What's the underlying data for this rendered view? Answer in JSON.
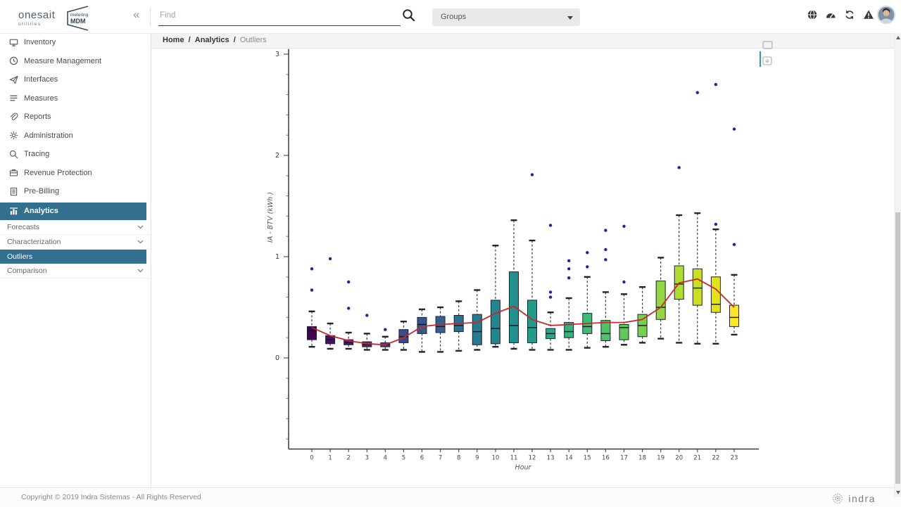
{
  "app": {
    "brand": "onesait",
    "brand_sub": "utilities",
    "product_top": "metering",
    "product": "MDM"
  },
  "topbar": {
    "collapse_icon": "«",
    "search_placeholder": "Find",
    "search_value": "",
    "groups_label": "Groups",
    "icons": [
      "globe-icon",
      "dashboard-gauge-icon",
      "sync-icon",
      "alerts-icon",
      "user-avatar"
    ]
  },
  "sidebar": {
    "items": [
      {
        "label": "Inventory",
        "icon": "inventory-monitor-icon"
      },
      {
        "label": "Measure Management",
        "icon": "clock-icon"
      },
      {
        "label": "Interfaces",
        "icon": "paper-plane-icon"
      },
      {
        "label": "Measures",
        "icon": "list-icon"
      },
      {
        "label": "Reports",
        "icon": "paperclip-icon"
      },
      {
        "label": "Administration",
        "icon": "gear-icon"
      },
      {
        "label": "Tracing",
        "icon": "search-icon"
      },
      {
        "label": "Revenue Protection",
        "icon": "briefcase-icon"
      },
      {
        "label": "Pre-Billing",
        "icon": "invoice-icon"
      }
    ],
    "analytics": {
      "label": "Analytics",
      "icon": "bar-chart-icon",
      "active": true
    },
    "analytics_children": [
      {
        "label": "Forecasts",
        "expandable": true,
        "active": false
      },
      {
        "label": "Characterization",
        "expandable": true,
        "active": false
      },
      {
        "label": "Outliers",
        "expandable": false,
        "active": true
      },
      {
        "label": "Comparison",
        "expandable": true,
        "active": false
      }
    ]
  },
  "breadcrumb": {
    "home": "Home",
    "section": "Analytics",
    "current": "Outliers",
    "separator": "/"
  },
  "chart_data": {
    "type": "box",
    "title": "",
    "xlabel": "Hour",
    "ylabel": "IA - BTV (kWh )",
    "x_ticks": [
      0,
      1,
      2,
      3,
      4,
      5,
      6,
      7,
      8,
      9,
      10,
      11,
      12,
      13,
      14,
      15,
      16,
      17,
      18,
      19,
      20,
      21,
      22,
      23
    ],
    "y_ticks": [
      0,
      1,
      2,
      3
    ],
    "ylim": [
      -0.9,
      3.05
    ],
    "y_minor_step": 0.2,
    "grid": false,
    "legend": "none",
    "outlier_color": "#2121a6",
    "mean_line": {
      "color": "#c62828",
      "values": [
        0.3,
        0.22,
        0.17,
        0.14,
        0.13,
        0.2,
        0.31,
        0.33,
        0.34,
        0.35,
        0.44,
        0.51,
        0.38,
        0.32,
        0.33,
        0.34,
        0.35,
        0.35,
        0.38,
        0.5,
        0.74,
        0.78,
        0.68,
        0.5
      ]
    },
    "boxes": [
      {
        "hour": 0,
        "low": 0.11,
        "q1": 0.18,
        "median": 0.27,
        "q3": 0.31,
        "high": 0.46,
        "outliers": [
          0.67,
          0.88
        ],
        "color": "#440154"
      },
      {
        "hour": 1,
        "low": 0.09,
        "q1": 0.14,
        "median": 0.18,
        "q3": 0.22,
        "high": 0.34,
        "outliers": [
          0.98
        ],
        "color": "#46115f"
      },
      {
        "hour": 2,
        "low": 0.09,
        "q1": 0.13,
        "median": 0.15,
        "q3": 0.18,
        "high": 0.25,
        "outliers": [
          0.49,
          0.75
        ],
        "color": "#482070"
      },
      {
        "hour": 3,
        "low": 0.08,
        "q1": 0.11,
        "median": 0.13,
        "q3": 0.16,
        "high": 0.24,
        "outliers": [
          0.42
        ],
        "color": "#472e7c"
      },
      {
        "hour": 4,
        "low": 0.08,
        "q1": 0.11,
        "median": 0.13,
        "q3": 0.15,
        "high": 0.21,
        "outliers": [
          0.28
        ],
        "color": "#423d84"
      },
      {
        "hour": 5,
        "low": 0.08,
        "q1": 0.15,
        "median": 0.21,
        "q3": 0.28,
        "high": 0.36,
        "outliers": [],
        "color": "#3d4a89"
      },
      {
        "hour": 6,
        "low": 0.06,
        "q1": 0.24,
        "median": 0.33,
        "q3": 0.4,
        "high": 0.48,
        "outliers": [],
        "color": "#37568c"
      },
      {
        "hour": 7,
        "low": 0.06,
        "q1": 0.25,
        "median": 0.31,
        "q3": 0.41,
        "high": 0.5,
        "outliers": [],
        "color": "#31638e"
      },
      {
        "hour": 8,
        "low": 0.07,
        "q1": 0.26,
        "median": 0.32,
        "q3": 0.42,
        "high": 0.56,
        "outliers": [],
        "color": "#2c6f8e"
      },
      {
        "hour": 9,
        "low": 0.08,
        "q1": 0.13,
        "median": 0.26,
        "q3": 0.43,
        "high": 0.67,
        "outliers": [],
        "color": "#277a8e"
      },
      {
        "hour": 10,
        "low": 0.11,
        "q1": 0.14,
        "median": 0.29,
        "q3": 0.57,
        "high": 1.11,
        "outliers": [],
        "color": "#23858d"
      },
      {
        "hour": 11,
        "low": 0.09,
        "q1": 0.15,
        "median": 0.32,
        "q3": 0.85,
        "high": 1.36,
        "outliers": [],
        "color": "#21918c"
      },
      {
        "hour": 12,
        "low": 0.08,
        "q1": 0.15,
        "median": 0.3,
        "q3": 0.57,
        "high": 1.16,
        "outliers": [
          1.81
        ],
        "color": "#219c88"
      },
      {
        "hour": 13,
        "low": 0.08,
        "q1": 0.19,
        "median": 0.24,
        "q3": 0.29,
        "high": 0.45,
        "outliers": [
          0.6,
          0.65,
          1.31
        ],
        "color": "#27a883"
      },
      {
        "hour": 14,
        "low": 0.08,
        "q1": 0.2,
        "median": 0.26,
        "q3": 0.35,
        "high": 0.59,
        "outliers": [
          0.79,
          0.88,
          0.96
        ],
        "color": "#31b37b"
      },
      {
        "hour": 15,
        "low": 0.1,
        "q1": 0.24,
        "median": 0.31,
        "q3": 0.44,
        "high": 0.8,
        "outliers": [
          0.9,
          1.04
        ],
        "color": "#3fbc71"
      },
      {
        "hour": 16,
        "low": 0.11,
        "q1": 0.17,
        "median": 0.24,
        "q3": 0.37,
        "high": 0.65,
        "outliers": [
          0.97,
          1.07,
          1.26
        ],
        "color": "#4ec465"
      },
      {
        "hour": 17,
        "low": 0.13,
        "q1": 0.18,
        "median": 0.3,
        "q3": 0.33,
        "high": 0.63,
        "outliers": [
          0.75,
          1.3
        ],
        "color": "#60ca58"
      },
      {
        "hour": 18,
        "low": 0.15,
        "q1": 0.21,
        "median": 0.32,
        "q3": 0.43,
        "high": 0.7,
        "outliers": [],
        "color": "#78d14c"
      },
      {
        "hour": 19,
        "low": 0.19,
        "q1": 0.38,
        "median": 0.5,
        "q3": 0.76,
        "high": 0.99,
        "outliers": [],
        "color": "#92d741"
      },
      {
        "hour": 20,
        "low": 0.15,
        "q1": 0.58,
        "median": 0.73,
        "q3": 0.91,
        "high": 1.41,
        "outliers": [
          1.88
        ],
        "color": "#aedc30"
      },
      {
        "hour": 21,
        "low": 0.14,
        "q1": 0.52,
        "median": 0.69,
        "q3": 0.88,
        "high": 1.43,
        "outliers": [
          2.62
        ],
        "color": "#c8e020"
      },
      {
        "hour": 22,
        "low": 0.14,
        "q1": 0.45,
        "median": 0.53,
        "q3": 0.8,
        "high": 1.27,
        "outliers": [
          1.32,
          2.7
        ],
        "color": "#e2e418"
      },
      {
        "hour": 23,
        "low": 0.23,
        "q1": 0.31,
        "median": 0.4,
        "q3": 0.52,
        "high": 0.82,
        "outliers": [
          1.12,
          2.26
        ],
        "color": "#fbe723"
      }
    ]
  },
  "footer": {
    "copyright": "Copyright © 2019 Indra Sistemas - All Rights Reserved",
    "brand": "indra"
  },
  "colors": {
    "accent_blue": "#33708f",
    "icon_dark": "#3a3a3a",
    "mean_line_red": "#c62828",
    "outlier_navy": "#2121a6"
  }
}
